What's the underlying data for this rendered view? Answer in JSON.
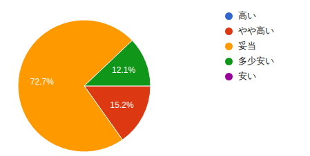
{
  "chart_data": {
    "type": "pie",
    "categories": [
      "高い",
      "やや高い",
      "妥当",
      "多少安い",
      "安い"
    ],
    "values": [
      0,
      15.2,
      72.7,
      12.1,
      0
    ],
    "value_labels": [
      null,
      "15.2%",
      "72.7%",
      "12.1%",
      null
    ],
    "colors": [
      "#3366cc",
      "#dc3912",
      "#ff9900",
      "#109618",
      "#990099"
    ],
    "data_labels": true,
    "legend": "right"
  }
}
